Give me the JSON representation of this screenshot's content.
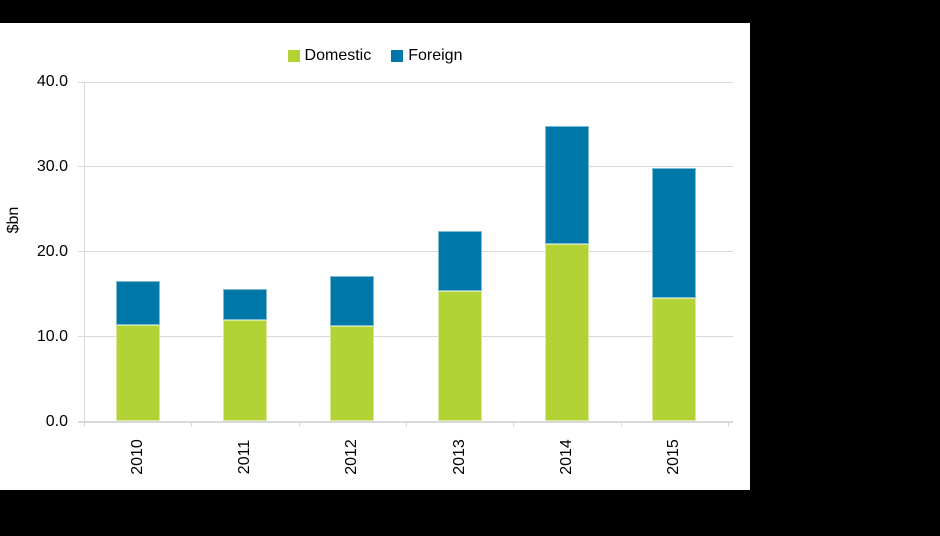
{
  "chart_data": {
    "type": "bar",
    "stacked": true,
    "title": "",
    "xlabel": "",
    "ylabel": "$bn",
    "categories": [
      "2010",
      "2011",
      "2012",
      "2013",
      "2014",
      "2015"
    ],
    "series": [
      {
        "name": "Domestic",
        "color": "#B2D235",
        "values": [
          11.4,
          11.9,
          11.2,
          15.4,
          20.9,
          14.5
        ]
      },
      {
        "name": "Foreign",
        "color": "#0077A9",
        "values": [
          5.2,
          3.7,
          6.0,
          7.0,
          13.9,
          15.4
        ]
      }
    ],
    "totals": [
      16.6,
      15.6,
      17.2,
      22.4,
      34.8,
      29.9
    ],
    "ylim": [
      0,
      40
    ],
    "yticks": [
      {
        "value": 40,
        "label": "40.0"
      },
      {
        "value": 30,
        "label": "30.0"
      },
      {
        "value": 20,
        "label": "20.0"
      },
      {
        "value": 10,
        "label": "10.0"
      },
      {
        "value": 0,
        "label": "0.0"
      }
    ],
    "grid": true,
    "legend_position": "top-center",
    "colors": {
      "gridline": "#D9D9D9",
      "axis_line": "#D9D9D9",
      "text": "#000000",
      "panel_background": "#FFFFFF",
      "page_background": "#000000"
    }
  }
}
